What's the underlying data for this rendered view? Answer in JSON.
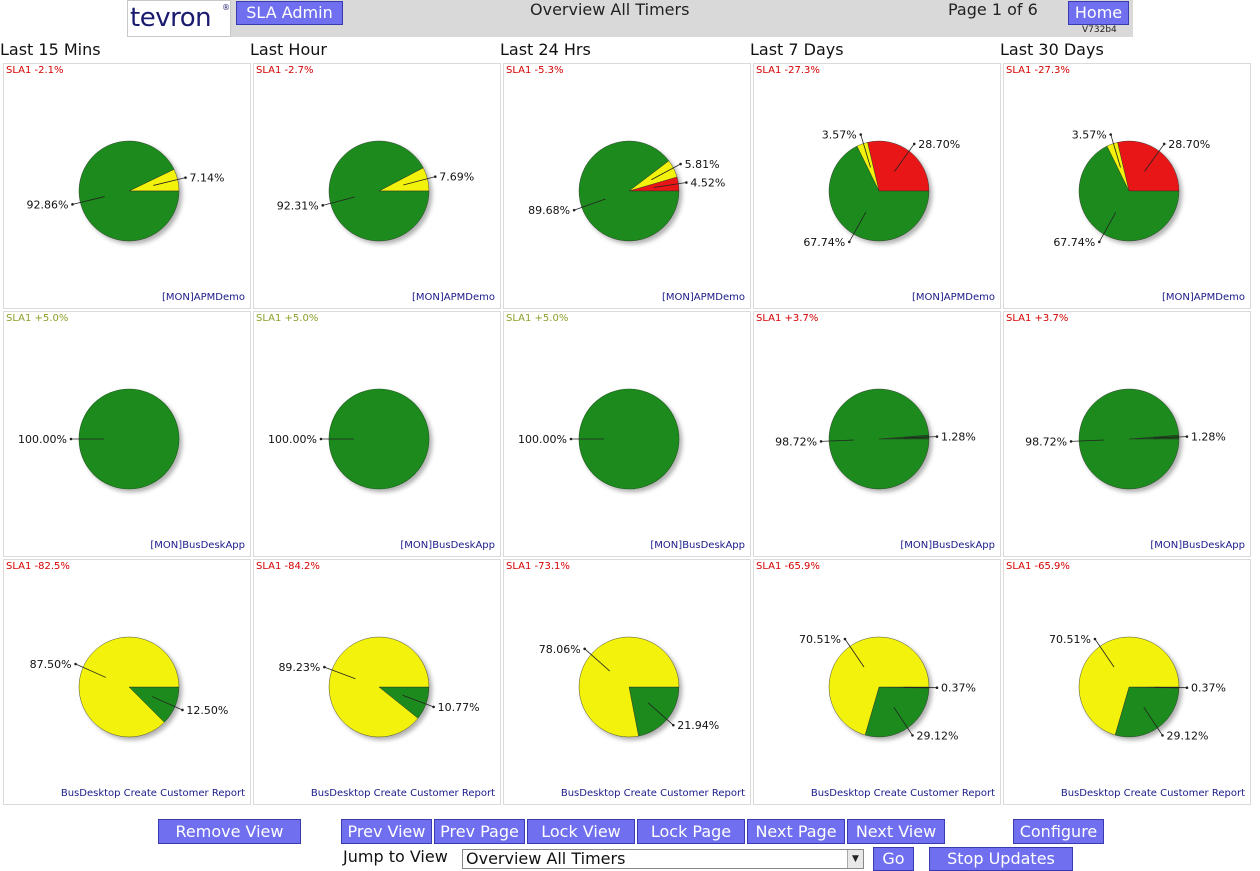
{
  "header": {
    "logo_text": "tevron",
    "admin_label": "SLA Admin",
    "view_title": "Overview All Timers",
    "page_indicator": "Page 1 of 6",
    "home_label": "Home",
    "version": "V732b4"
  },
  "columns": [
    "Last 15 Mins",
    "Last Hour",
    "Last 24 Hrs",
    "Last 7 Days",
    "Last 30 Days"
  ],
  "colors": {
    "green": "#1f8a1f",
    "yellow": "#f2f20c",
    "red": "#e81818",
    "button": "#6f6ff0"
  },
  "rows": [
    {
      "app": "[MON]APMDemo",
      "cells": [
        {
          "sla": "SLA1 -2.1%",
          "sla_status": "negative",
          "slices": [
            {
              "value": 7.14,
              "label": "7.14%",
              "color": "yellow"
            },
            {
              "value": 92.86,
              "label": "92.86%",
              "color": "green"
            }
          ]
        },
        {
          "sla": "SLA1 -2.7%",
          "sla_status": "negative",
          "slices": [
            {
              "value": 7.69,
              "label": "7.69%",
              "color": "yellow"
            },
            {
              "value": 92.31,
              "label": "92.31%",
              "color": "green"
            }
          ]
        },
        {
          "sla": "SLA1 -5.3%",
          "sla_status": "negative",
          "slices": [
            {
              "value": 4.52,
              "label": "4.52%",
              "color": "red"
            },
            {
              "value": 5.81,
              "label": "5.81%",
              "color": "yellow"
            },
            {
              "value": 89.68,
              "label": "89.68%",
              "color": "green"
            }
          ]
        },
        {
          "sla": "SLA1 -27.3%",
          "sla_status": "negative",
          "slices": [
            {
              "value": 28.7,
              "label": "28.70%",
              "color": "red"
            },
            {
              "value": 3.57,
              "label": "3.57%",
              "color": "yellow"
            },
            {
              "value": 67.74,
              "label": "67.74%",
              "color": "green"
            }
          ]
        },
        {
          "sla": "SLA1 -27.3%",
          "sla_status": "negative",
          "slices": [
            {
              "value": 28.7,
              "label": "28.70%",
              "color": "red"
            },
            {
              "value": 3.57,
              "label": "3.57%",
              "color": "yellow"
            },
            {
              "value": 67.74,
              "label": "67.74%",
              "color": "green"
            }
          ]
        }
      ]
    },
    {
      "app": "[MON]BusDeskApp",
      "cells": [
        {
          "sla": "SLA1 +5.0%",
          "sla_status": "positive",
          "slices": [
            {
              "value": 100.0,
              "label": "100.00%",
              "color": "green"
            }
          ]
        },
        {
          "sla": "SLA1 +5.0%",
          "sla_status": "positive",
          "slices": [
            {
              "value": 100.0,
              "label": "100.00%",
              "color": "green"
            }
          ]
        },
        {
          "sla": "SLA1 +5.0%",
          "sla_status": "positive",
          "slices": [
            {
              "value": 100.0,
              "label": "100.00%",
              "color": "green"
            }
          ]
        },
        {
          "sla": "SLA1 +3.7%",
          "sla_status": "negative",
          "slices": [
            {
              "value": 1.28,
              "label": "1.28%",
              "color": "darkgreen"
            },
            {
              "value": 98.72,
              "label": "98.72%",
              "color": "green"
            }
          ]
        },
        {
          "sla": "SLA1 +3.7%",
          "sla_status": "negative",
          "slices": [
            {
              "value": 1.28,
              "label": "1.28%",
              "color": "darkgreen"
            },
            {
              "value": 98.72,
              "label": "98.72%",
              "color": "green"
            }
          ]
        }
      ]
    },
    {
      "app": "BusDesktop Create Customer Report",
      "cells": [
        {
          "sla": "SLA1 -82.5%",
          "sla_status": "negative",
          "slices": [
            {
              "value": 12.5,
              "label": "12.50%",
              "color": "green",
              "dir": -1
            },
            {
              "value": 87.5,
              "label": "87.50%",
              "color": "yellow",
              "dir": -1
            }
          ]
        },
        {
          "sla": "SLA1 -84.2%",
          "sla_status": "negative",
          "slices": [
            {
              "value": 10.77,
              "label": "10.77%",
              "color": "green",
              "dir": -1
            },
            {
              "value": 89.23,
              "label": "89.23%",
              "color": "yellow",
              "dir": -1
            }
          ]
        },
        {
          "sla": "SLA1 -73.1%",
          "sla_status": "negative",
          "slices": [
            {
              "value": 21.94,
              "label": "21.94%",
              "color": "green",
              "dir": -1
            },
            {
              "value": 78.06,
              "label": "78.06%",
              "color": "yellow",
              "dir": -1
            }
          ]
        },
        {
          "sla": "SLA1 -65.9%",
          "sla_status": "negative",
          "slices": [
            {
              "value": 0.37,
              "label": "0.37%",
              "color": "darkgreen",
              "dir": -1
            },
            {
              "value": 29.12,
              "label": "29.12%",
              "color": "green",
              "dir": -1
            },
            {
              "value": 70.51,
              "label": "70.51%",
              "color": "yellow",
              "dir": -1
            }
          ]
        },
        {
          "sla": "SLA1 -65.9%",
          "sla_status": "negative",
          "slices": [
            {
              "value": 0.37,
              "label": "0.37%",
              "color": "darkgreen",
              "dir": -1
            },
            {
              "value": 29.12,
              "label": "29.12%",
              "color": "green",
              "dir": -1
            },
            {
              "value": 70.51,
              "label": "70.51%",
              "color": "yellow",
              "dir": -1
            }
          ]
        }
      ]
    }
  ],
  "footer": {
    "remove_view": "Remove View",
    "prev_view": "Prev View",
    "prev_page": "Prev Page",
    "lock_view": "Lock View",
    "lock_page": "Lock Page",
    "next_page": "Next Page",
    "next_view": "Next View",
    "configure": "Configure",
    "jump_label": "Jump to View",
    "jump_selected": "Overview All Timers",
    "go": "Go",
    "stop_updates": "Stop Updates"
  }
}
